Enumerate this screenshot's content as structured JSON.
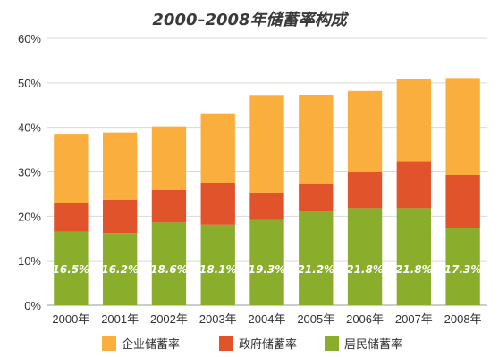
{
  "chart_data": {
    "type": "bar",
    "stacked": true,
    "title": "2000–2008年储蓄率构成",
    "categories": [
      "2000年",
      "2001年",
      "2002年",
      "2003年",
      "2004年",
      "2005年",
      "2006年",
      "2007年",
      "2008年"
    ],
    "ylim": [
      0,
      60
    ],
    "yticks": [
      "0%",
      "10%",
      "20%",
      "30%",
      "40%",
      "50%",
      "60%"
    ],
    "grid": true,
    "legend_position": "bottom",
    "series": [
      {
        "name": "居民储蓄率",
        "color": "#8aae2c",
        "values": [
          16.5,
          16.2,
          18.6,
          18.1,
          19.3,
          21.2,
          21.8,
          21.8,
          17.3
        ],
        "data_labels": [
          "16.5%",
          "16.2%",
          "18.6%",
          "18.1%",
          "19.3%",
          "21.2%",
          "21.8%",
          "21.8%",
          "17.3%"
        ]
      },
      {
        "name": "政府储蓄率",
        "color": "#e0532b",
        "values": [
          6.4,
          7.5,
          7.3,
          9.4,
          6.0,
          6.1,
          8.1,
          10.6,
          12.0
        ]
      },
      {
        "name": "企业储蓄率",
        "color": "#f9ae3d",
        "values": [
          15.6,
          15.1,
          14.3,
          15.5,
          21.8,
          20.0,
          18.3,
          18.5,
          21.8
        ]
      }
    ],
    "legend_order": [
      "企业储蓄率",
      "政府储蓄率",
      "居民储蓄率"
    ]
  }
}
